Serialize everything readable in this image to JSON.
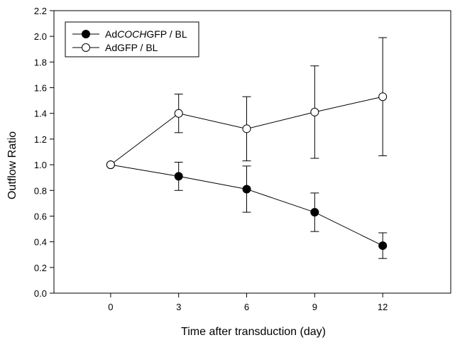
{
  "chart_data": {
    "type": "line",
    "title": "",
    "xlabel": "Time after transduction (day)",
    "ylabel": "Outflow Ratio",
    "xlim": [
      -2.5,
      15
    ],
    "ylim": [
      0,
      2.2
    ],
    "xticks": [
      "0",
      "3",
      "6",
      "9",
      "12"
    ],
    "yticks": [
      "0.0",
      "0.2",
      "0.4",
      "0.6",
      "0.8",
      "1.0",
      "1.2",
      "1.4",
      "1.6",
      "1.8",
      "2.0",
      "2.2"
    ],
    "grid": false,
    "legend_position": "top-left",
    "series": [
      {
        "name_prefix": "Ad",
        "name_italic": "COCH",
        "name_suffix": "GFP / BL",
        "marker": "filled-circle",
        "color": "#000000",
        "x": [
          0,
          3,
          6,
          9,
          12
        ],
        "y": [
          1.0,
          0.91,
          0.81,
          0.63,
          0.37
        ],
        "err_low": [
          null,
          0.8,
          0.63,
          0.48,
          0.27
        ],
        "err_high": [
          null,
          1.02,
          0.99,
          0.78,
          0.47
        ]
      },
      {
        "name_prefix": "AdGFP / BL",
        "name_italic": "",
        "name_suffix": "",
        "marker": "open-circle",
        "color": "#000000",
        "x": [
          0,
          3,
          6,
          9,
          12
        ],
        "y": [
          1.0,
          1.4,
          1.28,
          1.41,
          1.53
        ],
        "err_low": [
          null,
          1.25,
          1.03,
          1.05,
          1.07
        ],
        "err_high": [
          null,
          1.55,
          1.53,
          1.77,
          1.99
        ]
      }
    ]
  }
}
